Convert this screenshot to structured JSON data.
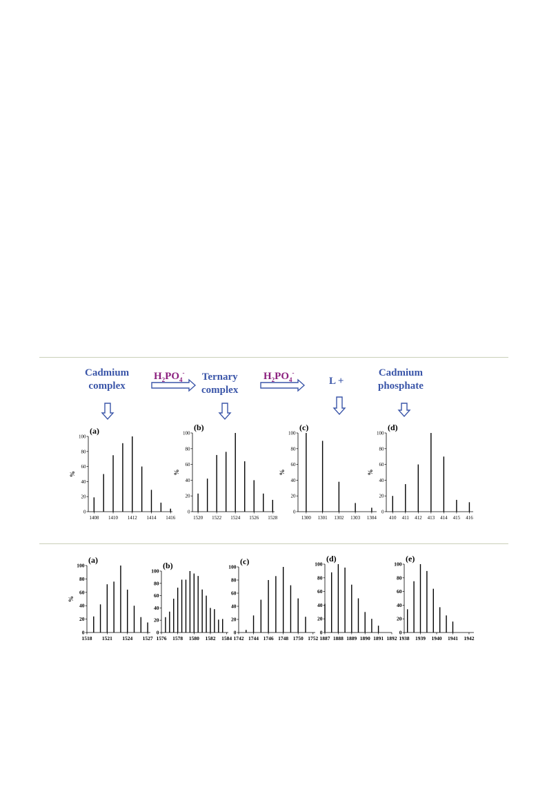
{
  "flow": {
    "stage1": {
      "line1": "Cadmium",
      "line2": "complex"
    },
    "stage2": {
      "line1": "Ternary",
      "line2": "complex"
    },
    "stage3": {
      "line1": "L +"
    },
    "stage4": {
      "line1": "Cadmium",
      "line2": "phosphate"
    },
    "reagent": {
      "base1": "H",
      "sub1": "2",
      "base2": "PO",
      "sub2": "4",
      "sup": "-"
    },
    "colors": {
      "stage": "#3a55a8",
      "reagent": "#8b1f7e"
    }
  },
  "chart_data": [
    {
      "type": "bar",
      "panel": "(a)",
      "ylabel": "%",
      "ylim": [
        0,
        100
      ],
      "yticks": [
        0,
        20,
        40,
        60,
        80,
        100
      ],
      "xlim": [
        1407.4,
        1416.2
      ],
      "xticks": [
        1408,
        1410,
        1412,
        1414,
        1416
      ],
      "x": [
        1408,
        1409,
        1410,
        1411,
        1412,
        1413,
        1414,
        1415,
        1416
      ],
      "values": [
        19,
        50,
        75,
        91,
        100,
        60,
        29,
        12,
        4
      ]
    },
    {
      "type": "bar",
      "panel": "(b)",
      "ylabel": "%",
      "ylim": [
        0,
        100
      ],
      "yticks": [
        0,
        20,
        40,
        60,
        80,
        100
      ],
      "xlim": [
        1519.4,
        1528.2
      ],
      "xticks": [
        1520,
        1522,
        1524,
        1526,
        1528
      ],
      "x": [
        1520,
        1521,
        1522,
        1523,
        1524,
        1525,
        1526,
        1527,
        1528
      ],
      "values": [
        23,
        42,
        72,
        76,
        100,
        64,
        40,
        23,
        15
      ]
    },
    {
      "type": "bar",
      "panel": "(c)",
      "ylabel": "%",
      "ylim": [
        0,
        100
      ],
      "yticks": [
        0,
        20,
        40,
        60,
        80,
        100
      ],
      "xlim": [
        1299.5,
        1304.3
      ],
      "xticks": [
        1300,
        1301,
        1302,
        1303,
        1304
      ],
      "x": [
        1300,
        1301,
        1302,
        1303,
        1304
      ],
      "values": [
        100,
        90,
        38,
        11,
        5
      ]
    },
    {
      "type": "bar",
      "panel": "(d)",
      "ylabel": "%",
      "ylim": [
        0,
        100
      ],
      "yticks": [
        0,
        20,
        40,
        60,
        80,
        100
      ],
      "xlim": [
        409.5,
        416.3
      ],
      "xticks": [
        410,
        411,
        412,
        413,
        414,
        415,
        416
      ],
      "x": [
        410,
        411,
        412,
        413,
        414,
        415,
        416
      ],
      "values": [
        20,
        35,
        60,
        100,
        70,
        15,
        12
      ]
    },
    {
      "type": "bar",
      "panel": "(a)",
      "ylabel": "%",
      "ylim": [
        0,
        100
      ],
      "yticks": [
        0,
        20,
        40,
        60,
        80,
        100
      ],
      "xlim": [
        1518,
        1527.4
      ],
      "xticks": [
        1518,
        1521,
        1524,
        1527
      ],
      "x": [
        1519,
        1520,
        1521,
        1522,
        1523,
        1524,
        1525,
        1526,
        1527
      ],
      "values": [
        24,
        42,
        72,
        76,
        100,
        64,
        40,
        23,
        15
      ]
    },
    {
      "type": "bar",
      "panel": "(b)",
      "ylabel": "",
      "ylim": [
        0,
        100
      ],
      "yticks": [
        0,
        20,
        40,
        60,
        80,
        100
      ],
      "xlim": [
        1576,
        1584.2
      ],
      "xticks": [
        1576,
        1578,
        1580,
        1582,
        1584
      ],
      "x": [
        1576.5,
        1577,
        1577.5,
        1578,
        1578.5,
        1579,
        1579.5,
        1580,
        1580.5,
        1581,
        1581.5,
        1582,
        1582.5,
        1583,
        1583.5
      ],
      "values": [
        25,
        34,
        55,
        73,
        86,
        86,
        100,
        96,
        92,
        70,
        60,
        40,
        38,
        21,
        22
      ]
    },
    {
      "type": "bar",
      "panel": "(c)",
      "ylabel": "",
      "ylim": [
        0,
        100
      ],
      "yticks": [
        0,
        20,
        40,
        60,
        80,
        100
      ],
      "xlim": [
        1742,
        1752.3
      ],
      "xticks": [
        1742,
        1744,
        1746,
        1748,
        1750,
        1752
      ],
      "x": [
        1743,
        1744,
        1745,
        1746,
        1747,
        1748,
        1749,
        1750,
        1751
      ],
      "values": [
        4,
        26,
        50,
        80,
        86,
        100,
        72,
        52,
        24
      ]
    },
    {
      "type": "bar",
      "panel": "(d)",
      "ylabel": "",
      "ylim": [
        0,
        100
      ],
      "yticks": [
        0,
        20,
        40,
        60,
        80,
        100
      ],
      "xlim": [
        1887,
        1892
      ],
      "xticks": [
        1887,
        1888,
        1889,
        1890,
        1891,
        1892
      ],
      "x": [
        1887,
        1887.5,
        1888,
        1888.5,
        1889,
        1889.5,
        1890,
        1890.5,
        1891
      ],
      "values": [
        42,
        88,
        100,
        95,
        70,
        50,
        30,
        20,
        10
      ]
    },
    {
      "type": "bar",
      "panel": "(e)",
      "ylabel": "",
      "ylim": [
        0,
        100
      ],
      "yticks": [
        0,
        20,
        40,
        60,
        80,
        100
      ],
      "xlim": [
        1938,
        1942.3
      ],
      "xticks": [
        1938,
        1939,
        1940,
        1941,
        1942
      ],
      "x": [
        1938.2,
        1938.6,
        1939,
        1939.4,
        1939.8,
        1940.2,
        1940.6,
        1941,
        1941.4
      ],
      "values": [
        34,
        75,
        100,
        90,
        64,
        37,
        25,
        16,
        0
      ]
    }
  ]
}
